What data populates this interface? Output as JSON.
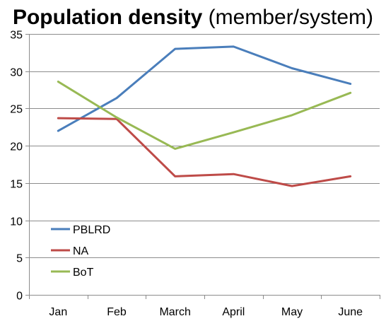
{
  "chart_data": {
    "type": "line",
    "title": "Population density",
    "subtitle": "(member/system)",
    "xlabel": "",
    "ylabel": "",
    "categories": [
      "Jan",
      "Feb",
      "March",
      "April",
      "May",
      "June"
    ],
    "ylim": [
      0,
      35
    ],
    "yticks": [
      0,
      5,
      10,
      15,
      20,
      25,
      30,
      35
    ],
    "grid": true,
    "legend_position": "bottom-left",
    "series": [
      {
        "name": "PBLRD",
        "color": "#4a7ebb",
        "values": [
          22.0,
          26.4,
          33.0,
          33.3,
          30.4,
          28.3
        ]
      },
      {
        "name": "NA",
        "color": "#be4b48",
        "values": [
          23.7,
          23.6,
          15.9,
          16.2,
          14.6,
          15.9
        ]
      },
      {
        "name": "BoT",
        "color": "#98b954",
        "values": [
          28.6,
          23.8,
          19.6,
          21.8,
          24.1,
          27.1
        ]
      }
    ]
  }
}
